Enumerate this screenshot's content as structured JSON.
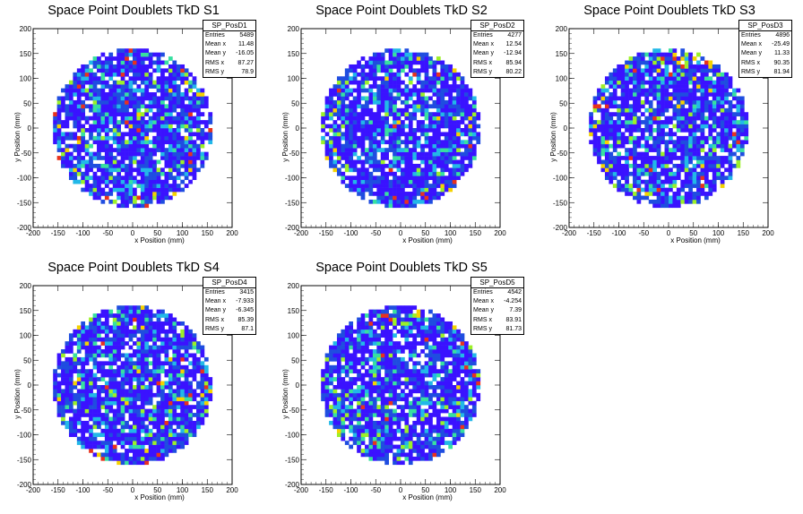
{
  "chart_data": [
    {
      "type": "heatmap",
      "title": "Space Point Doublets TkD S1",
      "xlabel": "x Position (mm)",
      "ylabel": "y Position (mm)",
      "xlim": [
        -200,
        200
      ],
      "ylim": [
        -200,
        200
      ],
      "xticks": [
        "-200",
        "-150",
        "-100",
        "-50",
        "0",
        "50",
        "100",
        "150",
        "200"
      ],
      "yticks": [
        "-200",
        "-150",
        "-100",
        "-50",
        "0",
        "50",
        "100",
        "150",
        "200"
      ],
      "radius_mm": 160,
      "stats": {
        "name": "SP_PosD1",
        "rows": [
          {
            "label": "Entries",
            "value": "5489"
          },
          {
            "label": "Mean x",
            "value": "11.48"
          },
          {
            "label": "Mean y",
            "value": "-16.05"
          },
          {
            "label": "RMS x",
            "value": "87.27"
          },
          {
            "label": "RMS y",
            "value": "78.9"
          }
        ]
      }
    },
    {
      "type": "heatmap",
      "title": "Space Point Doublets TkD S2",
      "xlabel": "x Position (mm)",
      "ylabel": "y Position (mm)",
      "xlim": [
        -200,
        200
      ],
      "ylim": [
        -200,
        200
      ],
      "xticks": [
        "-200",
        "-150",
        "-100",
        "-50",
        "0",
        "50",
        "100",
        "150",
        "200"
      ],
      "yticks": [
        "-200",
        "-150",
        "-100",
        "-50",
        "0",
        "50",
        "100",
        "150",
        "200"
      ],
      "radius_mm": 160,
      "stats": {
        "name": "SP_PosD2",
        "rows": [
          {
            "label": "Entries",
            "value": "4277"
          },
          {
            "label": "Mean x",
            "value": "12.54"
          },
          {
            "label": "Mean y",
            "value": "-12.94"
          },
          {
            "label": "RMS x",
            "value": "85.94"
          },
          {
            "label": "RMS y",
            "value": "80.22"
          }
        ]
      }
    },
    {
      "type": "heatmap",
      "title": "Space Point Doublets TkD S3",
      "xlabel": "x Position (mm)",
      "ylabel": "y Position (mm)",
      "xlim": [
        -200,
        200
      ],
      "ylim": [
        -200,
        200
      ],
      "xticks": [
        "-200",
        "-150",
        "-100",
        "-50",
        "0",
        "50",
        "100",
        "150",
        "200"
      ],
      "yticks": [
        "-200",
        "-150",
        "-100",
        "-50",
        "0",
        "50",
        "100",
        "150",
        "200"
      ],
      "radius_mm": 160,
      "stats": {
        "name": "SP_PosD3",
        "rows": [
          {
            "label": "Entries",
            "value": "4896"
          },
          {
            "label": "Mean x",
            "value": "-25.49"
          },
          {
            "label": "Mean y",
            "value": "11.33"
          },
          {
            "label": "RMS x",
            "value": "90.35"
          },
          {
            "label": "RMS y",
            "value": "81.94"
          }
        ]
      }
    },
    {
      "type": "heatmap",
      "title": "Space Point Doublets TkD S4",
      "xlabel": "x Position (mm)",
      "ylabel": "y Position (mm)",
      "xlim": [
        -200,
        200
      ],
      "ylim": [
        -200,
        200
      ],
      "xticks": [
        "-200",
        "-150",
        "-100",
        "-50",
        "0",
        "50",
        "100",
        "150",
        "200"
      ],
      "yticks": [
        "-200",
        "-150",
        "-100",
        "-50",
        "0",
        "50",
        "100",
        "150",
        "200"
      ],
      "radius_mm": 160,
      "stats": {
        "name": "SP_PosD4",
        "rows": [
          {
            "label": "Entries",
            "value": "3415"
          },
          {
            "label": "Mean x",
            "value": "-7.933"
          },
          {
            "label": "Mean y",
            "value": "-6.345"
          },
          {
            "label": "RMS x",
            "value": "85.39"
          },
          {
            "label": "RMS y",
            "value": "87.1"
          }
        ]
      }
    },
    {
      "type": "heatmap",
      "title": "Space Point Doublets TkD S5",
      "xlabel": "x Position (mm)",
      "ylabel": "y Position (mm)",
      "xlim": [
        -200,
        200
      ],
      "ylim": [
        -200,
        200
      ],
      "xticks": [
        "-200",
        "-150",
        "-100",
        "-50",
        "0",
        "50",
        "100",
        "150",
        "200"
      ],
      "yticks": [
        "-200",
        "-150",
        "-100",
        "-50",
        "0",
        "50",
        "100",
        "150",
        "200"
      ],
      "radius_mm": 160,
      "stats": {
        "name": "SP_PosD5",
        "rows": [
          {
            "label": "Entries",
            "value": "4542"
          },
          {
            "label": "Mean x",
            "value": "-4.254"
          },
          {
            "label": "Mean y",
            "value": "7.39"
          },
          {
            "label": "RMS x",
            "value": "83.91"
          },
          {
            "label": "RMS y",
            "value": "81.73"
          }
        ]
      }
    }
  ],
  "colors": {
    "empty": "#ffffff",
    "low": "#3a12ff",
    "mid_low": "#1f4de0",
    "mid": "#22b8e8",
    "mid_high": "#37e0a0",
    "high": "#9cf028",
    "higher": "#f5d200",
    "max": "#e8321e"
  }
}
